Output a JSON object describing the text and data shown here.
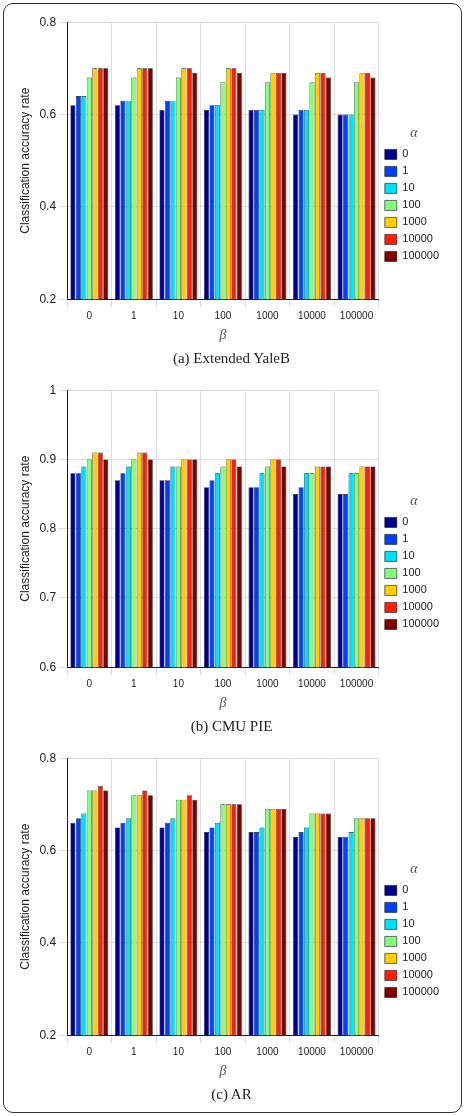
{
  "chart_data": [
    {
      "type": "bar",
      "title": "(a) Extended YaleB",
      "xlabel": "β",
      "ylabel": "Classification accuracy rate",
      "legend_title": "α",
      "legend": "right",
      "grid": true,
      "categories": [
        "0",
        "1",
        "10",
        "100",
        "1000",
        "10000",
        "100000"
      ],
      "ylim": [
        0.2,
        0.8
      ],
      "yticks": [
        0.2,
        0.4,
        0.6,
        0.8
      ],
      "series": [
        {
          "name": "0",
          "color": "#000090",
          "values": [
            0.62,
            0.62,
            0.61,
            0.61,
            0.61,
            0.6,
            0.6
          ]
        },
        {
          "name": "1",
          "color": "#0040ff",
          "values": [
            0.64,
            0.63,
            0.63,
            0.62,
            0.61,
            0.61,
            0.6
          ]
        },
        {
          "name": "10",
          "color": "#00dfff",
          "values": [
            0.64,
            0.63,
            0.63,
            0.62,
            0.61,
            0.61,
            0.6
          ]
        },
        {
          "name": "100",
          "color": "#80ff80",
          "values": [
            0.68,
            0.68,
            0.68,
            0.67,
            0.67,
            0.67,
            0.67
          ]
        },
        {
          "name": "1000",
          "color": "#ffcf00",
          "values": [
            0.7,
            0.7,
            0.7,
            0.7,
            0.69,
            0.69,
            0.69
          ]
        },
        {
          "name": "10000",
          "color": "#ff2000",
          "values": [
            0.7,
            0.7,
            0.7,
            0.7,
            0.69,
            0.69,
            0.69
          ]
        },
        {
          "name": "100000",
          "color": "#800000",
          "values": [
            0.7,
            0.7,
            0.69,
            0.69,
            0.69,
            0.68,
            0.68
          ]
        }
      ]
    },
    {
      "type": "bar",
      "title": "(b) CMU PIE",
      "xlabel": "β",
      "ylabel": "Classification accuracy rate",
      "legend_title": "α",
      "legend": "right",
      "grid": true,
      "categories": [
        "0",
        "1",
        "10",
        "100",
        "1000",
        "10000",
        "100000"
      ],
      "ylim": [
        0.6,
        1
      ],
      "yticks": [
        0.6,
        0.7,
        0.8,
        0.9,
        1
      ],
      "series": [
        {
          "name": "0",
          "color": "#000090",
          "values": [
            0.88,
            0.87,
            0.87,
            0.86,
            0.86,
            0.85,
            0.85
          ]
        },
        {
          "name": "1",
          "color": "#0040ff",
          "values": [
            0.88,
            0.88,
            0.87,
            0.87,
            0.86,
            0.86,
            0.85
          ]
        },
        {
          "name": "10",
          "color": "#00dfff",
          "values": [
            0.89,
            0.89,
            0.89,
            0.88,
            0.88,
            0.88,
            0.88
          ]
        },
        {
          "name": "100",
          "color": "#80ff80",
          "values": [
            0.9,
            0.9,
            0.89,
            0.89,
            0.89,
            0.88,
            0.88
          ]
        },
        {
          "name": "1000",
          "color": "#ffcf00",
          "values": [
            0.91,
            0.91,
            0.9,
            0.9,
            0.9,
            0.89,
            0.89
          ]
        },
        {
          "name": "10000",
          "color": "#ff2000",
          "values": [
            0.91,
            0.91,
            0.9,
            0.9,
            0.9,
            0.89,
            0.89
          ]
        },
        {
          "name": "100000",
          "color": "#800000",
          "values": [
            0.9,
            0.9,
            0.9,
            0.89,
            0.89,
            0.89,
            0.89
          ]
        }
      ]
    },
    {
      "type": "bar",
      "title": "(c) AR",
      "xlabel": "β",
      "ylabel": "Classification accuracy rate",
      "legend_title": "α",
      "legend": "right",
      "grid": true,
      "categories": [
        "0",
        "1",
        "10",
        "100",
        "1000",
        "10000",
        "100000"
      ],
      "ylim": [
        0.2,
        0.8
      ],
      "yticks": [
        0.2,
        0.4,
        0.6,
        0.8
      ],
      "series": [
        {
          "name": "0",
          "color": "#000090",
          "values": [
            0.66,
            0.65,
            0.65,
            0.64,
            0.64,
            0.63,
            0.63
          ]
        },
        {
          "name": "1",
          "color": "#0040ff",
          "values": [
            0.67,
            0.66,
            0.66,
            0.65,
            0.64,
            0.64,
            0.63
          ]
        },
        {
          "name": "10",
          "color": "#00dfff",
          "values": [
            0.68,
            0.67,
            0.67,
            0.66,
            0.65,
            0.65,
            0.64
          ]
        },
        {
          "name": "100",
          "color": "#80ff80",
          "values": [
            0.73,
            0.72,
            0.71,
            0.7,
            0.69,
            0.68,
            0.67
          ]
        },
        {
          "name": "1000",
          "color": "#ffcf00",
          "values": [
            0.73,
            0.72,
            0.71,
            0.7,
            0.69,
            0.68,
            0.67
          ]
        },
        {
          "name": "10000",
          "color": "#ff2000",
          "values": [
            0.74,
            0.73,
            0.72,
            0.7,
            0.69,
            0.68,
            0.67
          ]
        },
        {
          "name": "100000",
          "color": "#800000",
          "values": [
            0.73,
            0.72,
            0.71,
            0.7,
            0.69,
            0.68,
            0.67
          ]
        }
      ]
    }
  ]
}
